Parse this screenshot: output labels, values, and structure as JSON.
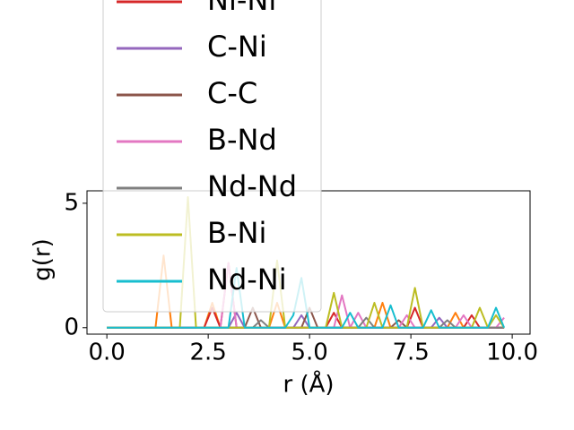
{
  "chart_data": {
    "type": "line",
    "x_label": "r (Å)",
    "y_label": "g(r)",
    "x": [
      0,
      0.2,
      0.4,
      0.6,
      0.8,
      1.0,
      1.2,
      1.4,
      1.6,
      1.8,
      2.0,
      2.2,
      2.4,
      2.6,
      2.8,
      3.0,
      3.2,
      3.4,
      3.6,
      3.8,
      4.0,
      4.2,
      4.4,
      4.6,
      4.8,
      5.0,
      5.2,
      5.4,
      5.6,
      5.8,
      6.0,
      6.2,
      6.4,
      6.6,
      6.8,
      7.0,
      7.2,
      7.4,
      7.6,
      7.8,
      8.0,
      8.2,
      8.4,
      8.6,
      8.8,
      9.0,
      9.2,
      9.4,
      9.6,
      9.8
    ],
    "xlim": [
      -0.49,
      10.44
    ],
    "xticks": [
      {
        "value": 0,
        "label": "0.0"
      },
      {
        "value": 2.5,
        "label": "2.5"
      },
      {
        "value": 5,
        "label": "5.0"
      },
      {
        "value": 7.5,
        "label": "7.5"
      },
      {
        "value": 10,
        "label": "10.0"
      }
    ],
    "ylim": [
      -0.26,
      5.5
    ],
    "yticks": [
      0,
      5
    ],
    "series": [
      {
        "color": "#ff7f0e",
        "values": [
          0,
          0,
          0,
          0,
          0,
          0,
          0,
          2.9,
          0,
          0,
          0,
          0,
          0,
          1.0,
          0,
          0,
          0,
          0,
          0,
          0,
          0,
          1.0,
          0,
          0,
          0,
          0,
          0,
          0,
          0,
          0,
          0,
          0,
          0,
          0,
          1.0,
          0,
          0,
          0,
          0,
          0,
          0,
          0,
          0,
          0.6,
          0,
          0,
          0,
          0,
          0,
          0
        ]
      },
      {
        "name": "Ni-Ni",
        "color": "#d62728",
        "values": [
          0,
          0,
          0,
          0,
          0,
          0,
          0,
          0,
          0,
          0,
          0,
          0,
          0,
          0.8,
          0,
          2.6,
          0,
          0,
          0,
          0,
          0,
          0,
          0,
          0,
          0,
          0,
          0,
          0,
          0.6,
          0,
          0,
          0,
          0,
          0,
          0,
          0,
          0,
          0,
          0.8,
          0,
          0,
          0,
          0,
          0,
          0,
          0.5,
          0,
          0,
          0,
          0
        ]
      },
      {
        "name": "C-Ni",
        "color": "#9467bd",
        "values": [
          0,
          0,
          0,
          0,
          0,
          0,
          0,
          0,
          0,
          0,
          0,
          0,
          0,
          0,
          0,
          0,
          0.6,
          0,
          0,
          0,
          0,
          0,
          0,
          0,
          0.5,
          0,
          0,
          0,
          0,
          0,
          0,
          0,
          0,
          0,
          0,
          0,
          0,
          0,
          0,
          0,
          0,
          0.4,
          0,
          0,
          0,
          0,
          0,
          0,
          0,
          0
        ]
      },
      {
        "name": "C-C",
        "color": "#8c564b",
        "values": [
          0,
          0,
          0,
          0,
          0,
          0,
          0,
          0,
          0,
          0,
          0,
          0,
          0,
          0,
          0,
          0,
          0,
          0,
          0.8,
          0,
          0,
          0,
          0,
          0,
          0,
          0.8,
          0,
          0,
          0,
          0,
          0,
          0,
          0,
          0,
          0,
          0,
          0.3,
          0,
          0,
          0,
          0,
          0,
          0,
          0,
          0,
          0,
          0,
          0,
          0,
          0
        ]
      },
      {
        "name": "B-Nd",
        "color": "#e377c2",
        "values": [
          0,
          0,
          0,
          0,
          0,
          0,
          0,
          0,
          0,
          0,
          0,
          0,
          0,
          0,
          0,
          2.6,
          0,
          0,
          0,
          0,
          0,
          0,
          0,
          0,
          0,
          0,
          0,
          0,
          0,
          1.3,
          0,
          0.6,
          0,
          0,
          0,
          0,
          0,
          0.5,
          0,
          0,
          0,
          0,
          0,
          0,
          0.5,
          0,
          0,
          0,
          0,
          0.4
        ]
      },
      {
        "name": "Nd-Nd",
        "color": "#7f7f7f",
        "values": [
          0,
          0,
          0,
          0,
          0,
          0,
          0,
          0,
          0,
          0,
          0,
          0,
          0,
          0,
          0,
          0,
          0,
          0,
          0,
          0.3,
          0,
          0,
          0,
          0,
          0,
          0,
          0,
          0,
          0,
          0,
          0,
          0,
          0.4,
          0,
          0,
          0,
          0,
          0,
          0,
          0,
          0,
          0,
          0.3,
          0,
          0,
          0,
          0,
          0,
          0,
          0
        ]
      },
      {
        "name": "B-Ni",
        "color": "#bcbd22",
        "values": [
          0,
          0,
          0,
          0,
          0,
          0,
          0,
          0,
          0,
          0,
          5.25,
          0,
          0,
          0,
          0,
          0,
          0,
          0,
          0,
          0,
          0,
          2.7,
          0,
          0,
          0,
          0,
          0,
          0,
          1.4,
          0,
          0,
          0,
          0,
          1.0,
          0,
          0,
          0,
          0,
          1.6,
          0,
          0,
          0,
          0,
          0,
          0,
          0,
          0.8,
          0,
          0.5,
          0
        ]
      },
      {
        "name": "Nd-Ni",
        "color": "#17becf",
        "values": [
          0,
          0,
          0,
          0,
          0,
          0,
          0,
          0,
          0,
          0,
          0,
          0,
          0,
          0,
          0,
          0,
          2.4,
          0,
          0,
          0,
          0,
          0,
          0,
          0.5,
          2.0,
          0,
          0,
          0,
          0,
          0,
          0.6,
          0,
          0,
          0,
          0,
          0.9,
          0,
          0,
          0,
          0,
          0.7,
          0,
          0,
          0,
          0,
          0,
          0,
          0,
          0.8,
          0
        ]
      }
    ]
  }
}
